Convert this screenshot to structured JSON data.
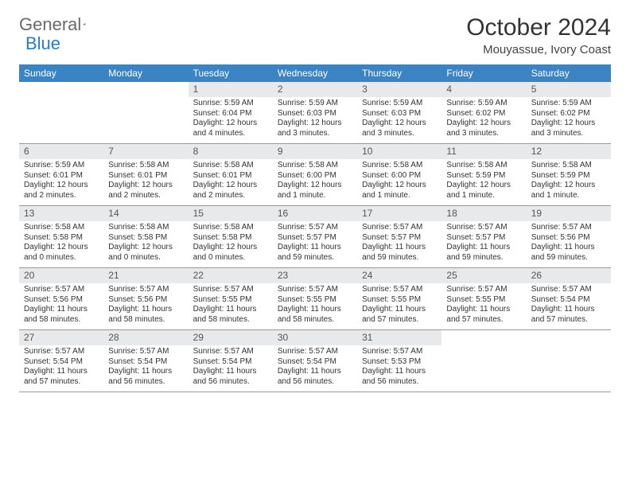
{
  "brand": {
    "part1": "General",
    "part2": "Blue"
  },
  "title": "October 2024",
  "location": "Mouyassue, Ivory Coast",
  "colors": {
    "header_bg": "#3b84c4",
    "header_text": "#ffffff",
    "daynum_bg": "#e8e9ea",
    "border": "#999999",
    "text": "#333333",
    "brand_gray": "#6a6a6a",
    "brand_blue": "#2a7ac0"
  },
  "dow": [
    "Sunday",
    "Monday",
    "Tuesday",
    "Wednesday",
    "Thursday",
    "Friday",
    "Saturday"
  ],
  "weeks": [
    [
      null,
      null,
      {
        "n": "1",
        "sr": "Sunrise: 5:59 AM",
        "ss": "Sunset: 6:04 PM",
        "dl": "Daylight: 12 hours and 4 minutes."
      },
      {
        "n": "2",
        "sr": "Sunrise: 5:59 AM",
        "ss": "Sunset: 6:03 PM",
        "dl": "Daylight: 12 hours and 3 minutes."
      },
      {
        "n": "3",
        "sr": "Sunrise: 5:59 AM",
        "ss": "Sunset: 6:03 PM",
        "dl": "Daylight: 12 hours and 3 minutes."
      },
      {
        "n": "4",
        "sr": "Sunrise: 5:59 AM",
        "ss": "Sunset: 6:02 PM",
        "dl": "Daylight: 12 hours and 3 minutes."
      },
      {
        "n": "5",
        "sr": "Sunrise: 5:59 AM",
        "ss": "Sunset: 6:02 PM",
        "dl": "Daylight: 12 hours and 3 minutes."
      }
    ],
    [
      {
        "n": "6",
        "sr": "Sunrise: 5:59 AM",
        "ss": "Sunset: 6:01 PM",
        "dl": "Daylight: 12 hours and 2 minutes."
      },
      {
        "n": "7",
        "sr": "Sunrise: 5:58 AM",
        "ss": "Sunset: 6:01 PM",
        "dl": "Daylight: 12 hours and 2 minutes."
      },
      {
        "n": "8",
        "sr": "Sunrise: 5:58 AM",
        "ss": "Sunset: 6:01 PM",
        "dl": "Daylight: 12 hours and 2 minutes."
      },
      {
        "n": "9",
        "sr": "Sunrise: 5:58 AM",
        "ss": "Sunset: 6:00 PM",
        "dl": "Daylight: 12 hours and 1 minute."
      },
      {
        "n": "10",
        "sr": "Sunrise: 5:58 AM",
        "ss": "Sunset: 6:00 PM",
        "dl": "Daylight: 12 hours and 1 minute."
      },
      {
        "n": "11",
        "sr": "Sunrise: 5:58 AM",
        "ss": "Sunset: 5:59 PM",
        "dl": "Daylight: 12 hours and 1 minute."
      },
      {
        "n": "12",
        "sr": "Sunrise: 5:58 AM",
        "ss": "Sunset: 5:59 PM",
        "dl": "Daylight: 12 hours and 1 minute."
      }
    ],
    [
      {
        "n": "13",
        "sr": "Sunrise: 5:58 AM",
        "ss": "Sunset: 5:58 PM",
        "dl": "Daylight: 12 hours and 0 minutes."
      },
      {
        "n": "14",
        "sr": "Sunrise: 5:58 AM",
        "ss": "Sunset: 5:58 PM",
        "dl": "Daylight: 12 hours and 0 minutes."
      },
      {
        "n": "15",
        "sr": "Sunrise: 5:58 AM",
        "ss": "Sunset: 5:58 PM",
        "dl": "Daylight: 12 hours and 0 minutes."
      },
      {
        "n": "16",
        "sr": "Sunrise: 5:57 AM",
        "ss": "Sunset: 5:57 PM",
        "dl": "Daylight: 11 hours and 59 minutes."
      },
      {
        "n": "17",
        "sr": "Sunrise: 5:57 AM",
        "ss": "Sunset: 5:57 PM",
        "dl": "Daylight: 11 hours and 59 minutes."
      },
      {
        "n": "18",
        "sr": "Sunrise: 5:57 AM",
        "ss": "Sunset: 5:57 PM",
        "dl": "Daylight: 11 hours and 59 minutes."
      },
      {
        "n": "19",
        "sr": "Sunrise: 5:57 AM",
        "ss": "Sunset: 5:56 PM",
        "dl": "Daylight: 11 hours and 59 minutes."
      }
    ],
    [
      {
        "n": "20",
        "sr": "Sunrise: 5:57 AM",
        "ss": "Sunset: 5:56 PM",
        "dl": "Daylight: 11 hours and 58 minutes."
      },
      {
        "n": "21",
        "sr": "Sunrise: 5:57 AM",
        "ss": "Sunset: 5:56 PM",
        "dl": "Daylight: 11 hours and 58 minutes."
      },
      {
        "n": "22",
        "sr": "Sunrise: 5:57 AM",
        "ss": "Sunset: 5:55 PM",
        "dl": "Daylight: 11 hours and 58 minutes."
      },
      {
        "n": "23",
        "sr": "Sunrise: 5:57 AM",
        "ss": "Sunset: 5:55 PM",
        "dl": "Daylight: 11 hours and 58 minutes."
      },
      {
        "n": "24",
        "sr": "Sunrise: 5:57 AM",
        "ss": "Sunset: 5:55 PM",
        "dl": "Daylight: 11 hours and 57 minutes."
      },
      {
        "n": "25",
        "sr": "Sunrise: 5:57 AM",
        "ss": "Sunset: 5:55 PM",
        "dl": "Daylight: 11 hours and 57 minutes."
      },
      {
        "n": "26",
        "sr": "Sunrise: 5:57 AM",
        "ss": "Sunset: 5:54 PM",
        "dl": "Daylight: 11 hours and 57 minutes."
      }
    ],
    [
      {
        "n": "27",
        "sr": "Sunrise: 5:57 AM",
        "ss": "Sunset: 5:54 PM",
        "dl": "Daylight: 11 hours and 57 minutes."
      },
      {
        "n": "28",
        "sr": "Sunrise: 5:57 AM",
        "ss": "Sunset: 5:54 PM",
        "dl": "Daylight: 11 hours and 56 minutes."
      },
      {
        "n": "29",
        "sr": "Sunrise: 5:57 AM",
        "ss": "Sunset: 5:54 PM",
        "dl": "Daylight: 11 hours and 56 minutes."
      },
      {
        "n": "30",
        "sr": "Sunrise: 5:57 AM",
        "ss": "Sunset: 5:54 PM",
        "dl": "Daylight: 11 hours and 56 minutes."
      },
      {
        "n": "31",
        "sr": "Sunrise: 5:57 AM",
        "ss": "Sunset: 5:53 PM",
        "dl": "Daylight: 11 hours and 56 minutes."
      },
      null,
      null
    ]
  ]
}
